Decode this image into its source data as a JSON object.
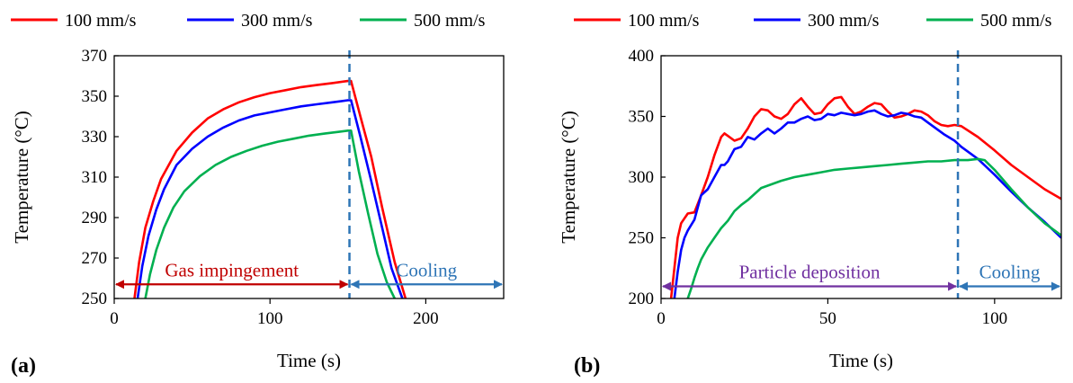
{
  "chart_data": [
    {
      "type": "line",
      "panel_label": "(a)",
      "xlabel": "Time (s)",
      "ylabel": "Temperature (°C)",
      "xlim": [
        0,
        250
      ],
      "ylim": [
        250,
        370
      ],
      "xticks": [
        0,
        100,
        200
      ],
      "yticks": [
        250,
        270,
        290,
        310,
        330,
        350,
        370
      ],
      "legend_position": "top",
      "legend": [
        "100 mm/s",
        "300 mm/s",
        "500 mm/s"
      ],
      "series": [
        {
          "name": "100 mm/s",
          "color": "#ff0000",
          "x": [
            13,
            16,
            20,
            25,
            30,
            40,
            50,
            60,
            70,
            80,
            90,
            100,
            110,
            120,
            130,
            140,
            150,
            152,
            158,
            165,
            172,
            180,
            187
          ],
          "y": [
            250,
            268,
            285,
            298,
            309,
            323,
            332,
            339,
            343.5,
            347,
            349.5,
            351.5,
            353,
            354.5,
            355.5,
            356.5,
            357.5,
            357.5,
            340,
            320,
            295,
            268,
            250
          ]
        },
        {
          "name": "300 mm/s",
          "color": "#0000ff",
          "x": [
            15,
            18,
            22,
            27,
            32,
            40,
            50,
            60,
            70,
            80,
            90,
            100,
            110,
            120,
            130,
            140,
            150,
            152,
            158,
            165,
            172,
            178,
            185
          ],
          "y": [
            250,
            266,
            281,
            294,
            304,
            316,
            324,
            330,
            334.5,
            338,
            340.5,
            342,
            343.5,
            345,
            346,
            347,
            348,
            348,
            330,
            308,
            285,
            265,
            250
          ]
        },
        {
          "name": "500 mm/s",
          "color": "#00b050",
          "x": [
            20,
            23,
            27,
            32,
            38,
            45,
            55,
            65,
            75,
            85,
            95,
            105,
            115,
            125,
            135,
            145,
            150,
            152,
            157,
            163,
            169,
            175,
            180
          ],
          "y": [
            250,
            262,
            274,
            285,
            295,
            303,
            310.5,
            316,
            320,
            323,
            325.5,
            327.5,
            329,
            330.5,
            331.5,
            332.5,
            333,
            333,
            313,
            292,
            272,
            258,
            250
          ]
        }
      ],
      "vline_x": 151,
      "annotations": [
        {
          "text": "Gas impingement",
          "color": "#c00000",
          "x_from": 0,
          "x_to": 151,
          "y": 257
        },
        {
          "text": "Cooling",
          "color": "#2e75b6",
          "x_from": 151,
          "x_to": 250,
          "y": 257
        }
      ]
    },
    {
      "type": "line",
      "panel_label": "(b)",
      "xlabel": "Time (s)",
      "ylabel": "Temperature (°C)",
      "xlim": [
        0,
        120
      ],
      "ylim": [
        200,
        400
      ],
      "xticks": [
        0,
        50,
        100
      ],
      "yticks": [
        200,
        250,
        300,
        350,
        400
      ],
      "legend_position": "top",
      "legend": [
        "100 mm/s",
        "300 mm/s",
        "500 mm/s"
      ],
      "series": [
        {
          "name": "100 mm/s",
          "color": "#ff0000",
          "x": [
            3,
            4,
            5,
            6,
            8,
            10,
            12,
            14,
            16,
            18,
            19,
            20,
            22,
            24,
            26,
            28,
            30,
            32,
            34,
            36,
            38,
            40,
            42,
            44,
            46,
            48,
            50,
            52,
            54,
            56,
            58,
            60,
            62,
            64,
            66,
            68,
            70,
            72,
            74,
            76,
            78,
            80,
            82,
            84,
            86,
            88,
            90,
            95,
            100,
            105,
            110,
            115,
            120
          ],
          "y": [
            200,
            225,
            250,
            262,
            270,
            271,
            285,
            300,
            318,
            333,
            336,
            334,
            330,
            332,
            340,
            350,
            356,
            355,
            350,
            348,
            352,
            360,
            365,
            358,
            352,
            353,
            360,
            365,
            366,
            358,
            352,
            354,
            358,
            361,
            360,
            354,
            349,
            350,
            352,
            355,
            354,
            351,
            346,
            343,
            342,
            343,
            342,
            333,
            322,
            310,
            300,
            290,
            282
          ]
        },
        {
          "name": "300 mm/s",
          "color": "#0000ff",
          "x": [
            4,
            5,
            6,
            7,
            8,
            10,
            12,
            14,
            16,
            18,
            19,
            20,
            22,
            24,
            26,
            28,
            30,
            32,
            34,
            36,
            38,
            40,
            42,
            44,
            46,
            48,
            50,
            52,
            54,
            56,
            58,
            60,
            62,
            64,
            66,
            68,
            70,
            72,
            74,
            76,
            78,
            80,
            85,
            88,
            90,
            95,
            100,
            105,
            110,
            115,
            120
          ],
          "y": [
            200,
            222,
            240,
            250,
            256,
            265,
            285,
            290,
            300,
            310,
            310,
            313,
            323,
            325,
            333,
            331,
            336,
            340,
            336,
            340,
            345,
            345,
            348,
            350,
            347,
            348,
            352,
            351,
            353,
            352,
            351,
            352,
            354,
            355,
            352,
            350,
            351,
            353,
            352,
            350,
            349,
            345,
            335,
            330,
            325,
            315,
            302,
            288,
            275,
            263,
            250
          ]
        },
        {
          "name": "500 mm/s",
          "color": "#00b050",
          "x": [
            8,
            9,
            10,
            11,
            12,
            14,
            16,
            18,
            20,
            22,
            24,
            26,
            28,
            30,
            33,
            36,
            40,
            44,
            48,
            52,
            56,
            60,
            64,
            68,
            72,
            76,
            80,
            84,
            88,
            92,
            95,
            97,
            100,
            105,
            110,
            115,
            120
          ],
          "y": [
            200,
            208,
            217,
            225,
            232,
            242,
            250,
            258,
            264,
            272,
            277,
            281,
            286,
            291,
            294,
            297,
            300,
            302,
            304,
            306,
            307,
            308,
            309,
            310,
            311,
            312,
            313,
            313,
            314,
            314,
            315,
            314,
            306,
            290,
            275,
            262,
            252
          ]
        }
      ],
      "vline_x": 89,
      "annotations": [
        {
          "text": "Particle deposition",
          "color": "#7030a0",
          "x_from": 0,
          "x_to": 89,
          "y": 210
        },
        {
          "text": "Cooling",
          "color": "#2e75b6",
          "x_from": 89,
          "x_to": 120,
          "y": 210
        }
      ]
    }
  ]
}
